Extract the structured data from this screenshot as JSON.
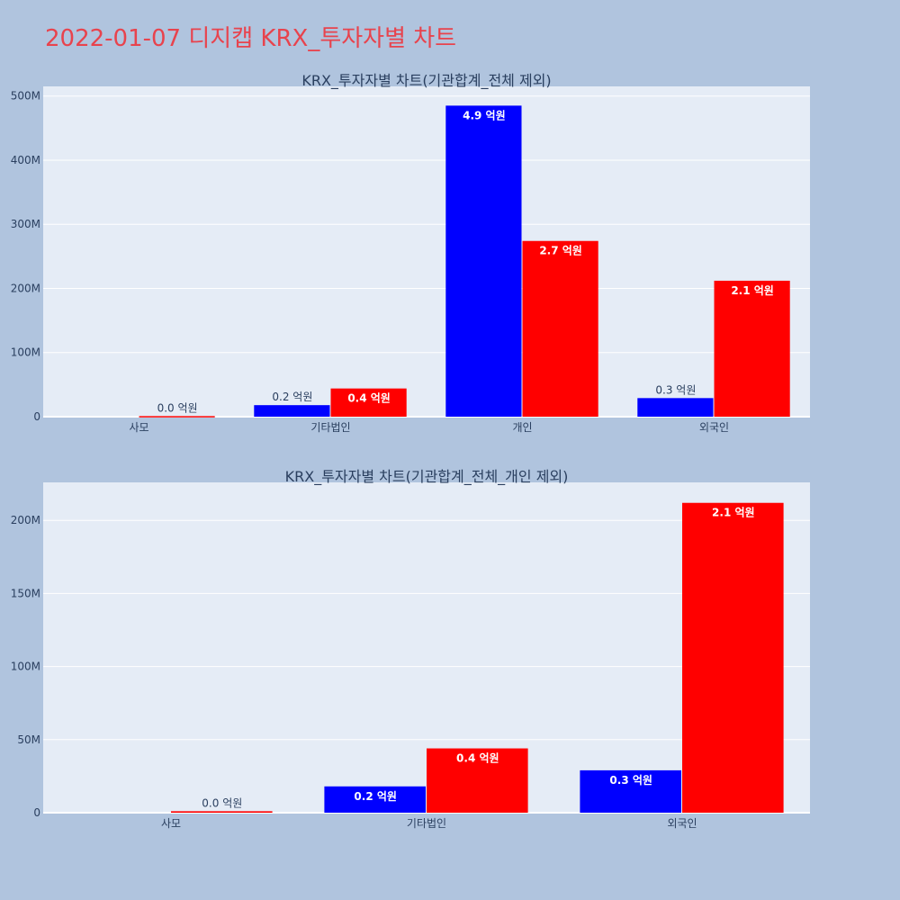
{
  "page": {
    "title": "2022-01-07 디지캡 KRX_투자자별 차트"
  },
  "colors": {
    "background": "#b0c4de",
    "plot_background": "#e5ecf6",
    "title": "#e8434d",
    "series_a": "#0000ff",
    "series_b": "#ff0000"
  },
  "chart_data": [
    {
      "type": "bar",
      "title": "KRX_투자자별 차트(기관합계_전체 제외)",
      "categories": [
        "사모",
        "기타법인",
        "개인",
        "외국인"
      ],
      "series": [
        {
          "color": "#0000ff",
          "values": [
            0,
            18000000,
            485000000,
            29000000
          ],
          "labels": [
            "",
            "0.2 억원",
            "4.9 억원",
            "0.3 억원"
          ]
        },
        {
          "color": "#ff0000",
          "values": [
            1000000,
            44000000,
            274000000,
            212000000
          ],
          "labels": [
            "0.0 억원",
            "0.4 억원",
            "2.7 억원",
            "2.1 억원"
          ]
        }
      ],
      "ylim": [
        0,
        515000000
      ],
      "yticks": [
        0,
        100000000,
        200000000,
        300000000,
        400000000,
        500000000
      ],
      "ytick_labels": [
        "0",
        "100M",
        "200M",
        "300M",
        "400M",
        "500M"
      ],
      "grid": true
    },
    {
      "type": "bar",
      "title": "KRX_투자자별 차트(기관합계_전체_개인 제외)",
      "categories": [
        "사모",
        "기타법인",
        "외국인"
      ],
      "series": [
        {
          "color": "#0000ff",
          "values": [
            0,
            18000000,
            29000000
          ],
          "labels": [
            "",
            "0.2 억원",
            "0.3 억원"
          ]
        },
        {
          "color": "#ff0000",
          "values": [
            1000000,
            44000000,
            212000000
          ],
          "labels": [
            "0.0 억원",
            "0.4 억원",
            "2.1 억원"
          ]
        }
      ],
      "ylim": [
        0,
        226000000
      ],
      "yticks": [
        0,
        50000000,
        100000000,
        150000000,
        200000000
      ],
      "ytick_labels": [
        "0",
        "50M",
        "100M",
        "150M",
        "200M"
      ],
      "grid": true
    }
  ]
}
